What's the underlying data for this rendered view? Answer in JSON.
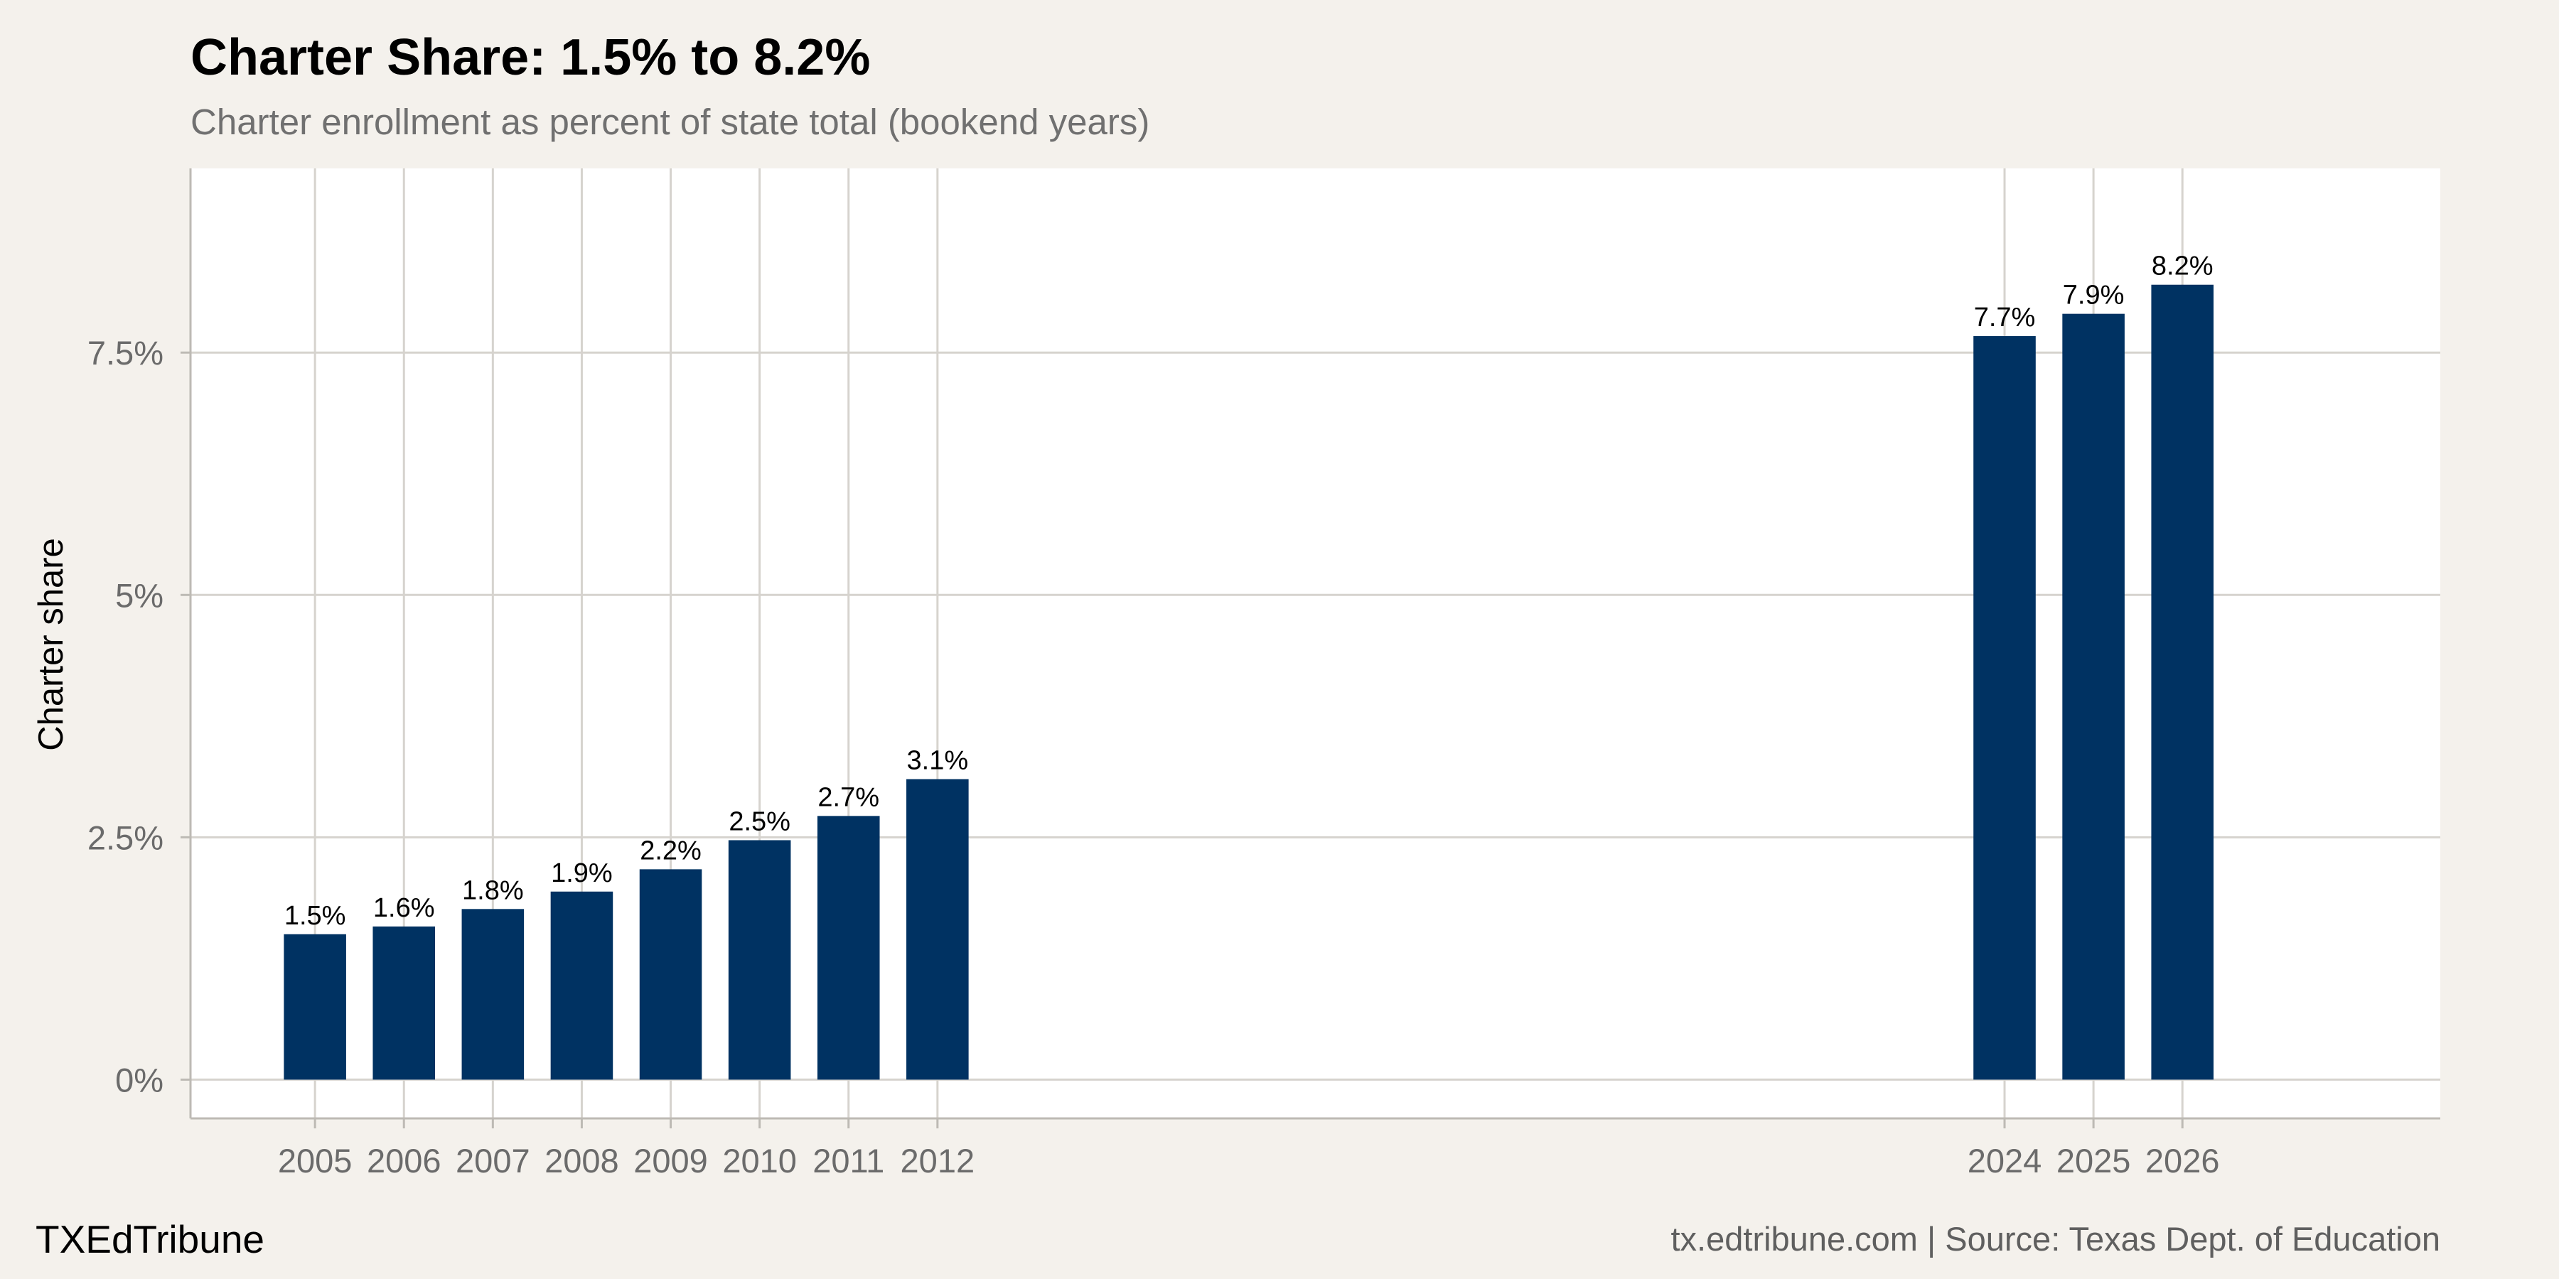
{
  "brand": "TXEdTribune",
  "caption": "tx.edtribune.com | Source: Texas Dept. of Education",
  "colors": {
    "background": "#f4f1ec",
    "panel": "#ffffff",
    "bar": "#003262",
    "grid": "#d6d3ce"
  },
  "chart_data": {
    "type": "bar",
    "title": "Charter Share: 1.5% to 8.2%",
    "subtitle": "Charter enrollment as percent of state total (bookend years)",
    "xlabel": "",
    "ylabel": "Charter share",
    "categories": [
      "2005",
      "2006",
      "2007",
      "2008",
      "2009",
      "2010",
      "2011",
      "2012",
      "2024",
      "2025",
      "2026"
    ],
    "values": [
      1.5,
      1.58,
      1.76,
      1.94,
      2.17,
      2.47,
      2.72,
      3.1,
      7.67,
      7.9,
      8.2
    ],
    "data_labels": [
      "1.5%",
      "1.6%",
      "1.8%",
      "1.9%",
      "2.2%",
      "2.5%",
      "2.7%",
      "3.1%",
      "7.7%",
      "7.9%",
      "8.2%"
    ],
    "x_scale": "continuous year",
    "xlim": [
      2003.6,
      2028.9
    ],
    "ylim": [
      -0.4,
      9.4
    ],
    "yticks": [
      0,
      2.5,
      5,
      7.5
    ],
    "ytick_labels": [
      "0%",
      "2.5%",
      "5%",
      "7.5%"
    ],
    "grid": true,
    "legend": "none"
  }
}
